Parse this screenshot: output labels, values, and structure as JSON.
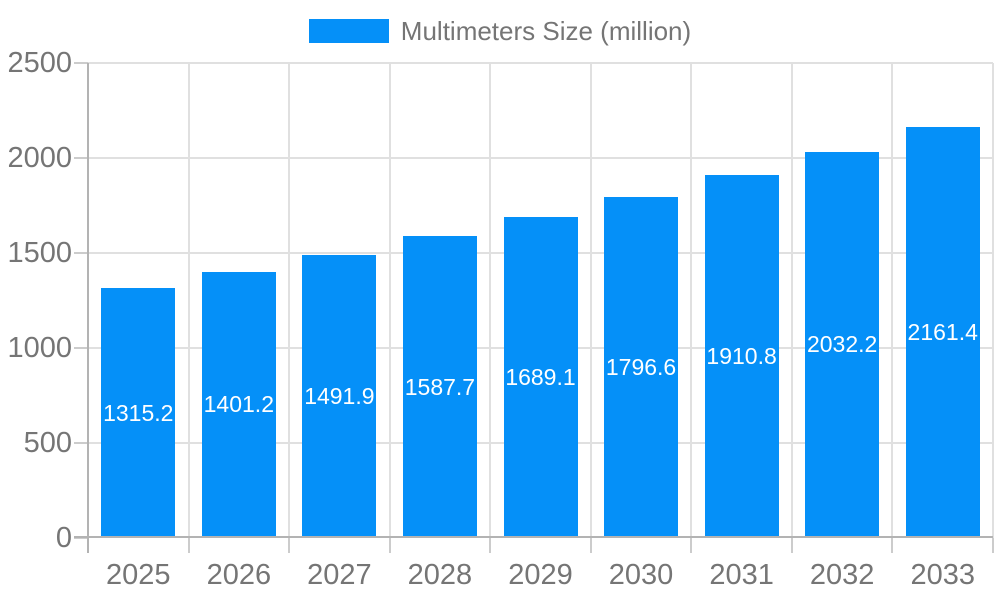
{
  "chart_data": {
    "type": "bar",
    "title": "",
    "legend": "Multimeters Size (million)",
    "legend_position": "top-center",
    "categories": [
      "2025",
      "2026",
      "2027",
      "2028",
      "2029",
      "2030",
      "2031",
      "2032",
      "2033"
    ],
    "values": [
      1315.2,
      1401.2,
      1491.9,
      1587.7,
      1689.1,
      1796.6,
      1910.8,
      2032.2,
      2161.4
    ],
    "value_labels": [
      "1315.2",
      "1401.2",
      "1491.9",
      "1587.7",
      "1689.1",
      "1796.6",
      "1910.8",
      "2032.2",
      "2161.4"
    ],
    "xlabel": "",
    "ylabel": "",
    "ylim": [
      0,
      2500
    ],
    "yticks": [
      0,
      500,
      1000,
      1500,
      2000,
      2500
    ],
    "grid": "on",
    "colors": {
      "bar": "#0590F8",
      "bar_label": "#ffffff",
      "axis_label": "#757575",
      "grid_line": "#e0e0e0",
      "axis_line": "#b3b3b3",
      "tick": "#cccccc",
      "background": "#ffffff"
    }
  }
}
